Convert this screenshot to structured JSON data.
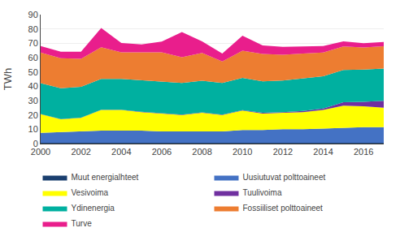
{
  "chart_data": {
    "type": "area",
    "stacked": true,
    "x": [
      2000,
      2001,
      2002,
      2003,
      2004,
      2005,
      2006,
      2007,
      2008,
      2009,
      2010,
      2011,
      2012,
      2013,
      2014,
      2015,
      2016,
      2017
    ],
    "series": [
      {
        "name": "Muut energialhteet",
        "color": "#1A3F6F",
        "values": [
          0.5,
          0.5,
          0.5,
          0.5,
          0.5,
          0.5,
          0.5,
          0.5,
          0.5,
          0.5,
          0.5,
          0.5,
          0.5,
          0.5,
          0.5,
          0.5,
          0.5,
          0.5
        ]
      },
      {
        "name": "Uusiutuvat polttoaineet",
        "color": "#4472C4",
        "values": [
          7.0,
          7.5,
          8.0,
          8.5,
          8.5,
          8.5,
          8.0,
          8.0,
          8.0,
          8.0,
          9.0,
          9.0,
          9.5,
          9.5,
          10.0,
          10.5,
          11.0,
          11.0
        ]
      },
      {
        "name": "Vesivoima",
        "color": "#FFFF00",
        "values": [
          13.0,
          9.0,
          9.5,
          14.5,
          14.5,
          13.0,
          12.5,
          11.5,
          13.0,
          11.5,
          13.5,
          11.5,
          11.5,
          12.0,
          13.0,
          15.5,
          14.5,
          13.5
        ]
      },
      {
        "name": "Tuulivoima",
        "color": "#7030A0",
        "values": [
          0.1,
          0.1,
          0.1,
          0.2,
          0.2,
          0.2,
          0.2,
          0.3,
          0.3,
          0.3,
          0.3,
          0.5,
          0.5,
          0.8,
          1.0,
          2.3,
          3.1,
          4.9
        ]
      },
      {
        "name": "Ydinenergia",
        "color": "#00B0A0",
        "values": [
          21.5,
          21.5,
          21.5,
          21.5,
          21.5,
          22.0,
          22.0,
          22.0,
          22.0,
          22.0,
          22.5,
          22.0,
          22.0,
          22.5,
          22.5,
          22.5,
          22.5,
          22.5
        ]
      },
      {
        "name": "Fossiiliset polttoaineet",
        "color": "#ED7D31",
        "values": [
          21.5,
          21.0,
          19.5,
          22.0,
          18.5,
          19.5,
          20.5,
          18.0,
          19.5,
          15.0,
          19.0,
          19.0,
          18.0,
          17.5,
          16.5,
          16.5,
          15.5,
          15.5
        ]
      },
      {
        "name": "Turve",
        "color": "#E91E8C",
        "values": [
          4.5,
          4.5,
          5.0,
          13.5,
          6.5,
          5.5,
          7.5,
          17.5,
          8.0,
          5.5,
          10.5,
          6.0,
          5.5,
          5.0,
          4.5,
          3.5,
          3.0,
          3.0
        ]
      }
    ],
    "ylabel": "TWh",
    "xlim": [
      2000,
      2017
    ],
    "xticks": [
      2000,
      2002,
      2004,
      2006,
      2008,
      2010,
      2012,
      2014,
      2016
    ],
    "ylim": [
      0,
      90
    ],
    "yticks": [
      0,
      10,
      20,
      30,
      40,
      50,
      60,
      70,
      80,
      90
    ],
    "grid": true,
    "legend": "bottom"
  }
}
